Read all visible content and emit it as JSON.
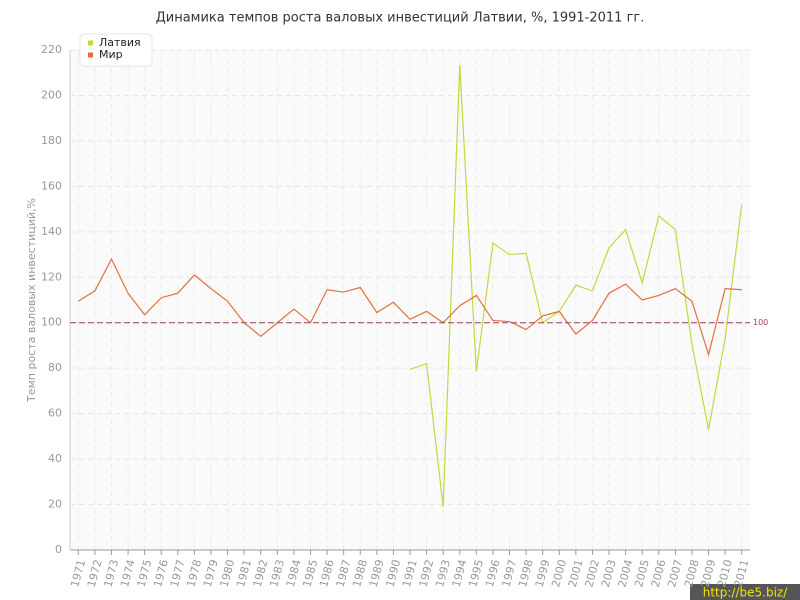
{
  "chart_data": {
    "type": "line",
    "title": "Динамика темпов роста валовых инвестиций Латвии, %, 1991-2011 гг.",
    "y_label": "Темп роста валовых инвестиций,%",
    "x": [
      1971,
      1972,
      1973,
      1974,
      1975,
      1976,
      1977,
      1978,
      1979,
      1980,
      1981,
      1982,
      1983,
      1984,
      1985,
      1986,
      1987,
      1988,
      1989,
      1990,
      1991,
      1992,
      1993,
      1994,
      1995,
      1996,
      1997,
      1998,
      1999,
      2000,
      2001,
      2002,
      2003,
      2004,
      2005,
      2006,
      2007,
      2008,
      2009,
      2010,
      2011
    ],
    "xlim": [
      1970.5,
      2011.5
    ],
    "ylim": [
      0,
      220
    ],
    "yticks": [
      0,
      20,
      40,
      60,
      80,
      100,
      120,
      140,
      160,
      180,
      200,
      220
    ],
    "grid": true,
    "legend": "top-left",
    "reference_line": 100,
    "series": [
      {
        "name": "Латвия",
        "color": "#c2d83e",
        "values": [
          null,
          null,
          null,
          null,
          null,
          null,
          null,
          null,
          null,
          null,
          null,
          null,
          null,
          null,
          null,
          null,
          null,
          null,
          null,
          null,
          79.5,
          82,
          19,
          213.5,
          78.5,
          135,
          130,
          130.5,
          100,
          105,
          116.5,
          114,
          133,
          141,
          117.5,
          147,
          141,
          90.5,
          53,
          93,
          152
        ]
      },
      {
        "name": "Мир",
        "color": "#e0703f",
        "values": [
          109.5,
          114,
          128,
          113,
          103.5,
          111,
          113,
          121,
          115,
          109.5,
          100,
          94,
          100,
          106,
          100,
          114.5,
          113.5,
          115.5,
          104.5,
          109,
          101.5,
          105,
          100,
          107.5,
          112,
          101,
          100.5,
          97,
          103,
          105,
          95,
          101,
          113,
          117,
          110,
          112,
          115,
          109.5,
          86,
          115,
          114.5
        ]
      }
    ],
    "watermark": "http://be5.biz/"
  }
}
